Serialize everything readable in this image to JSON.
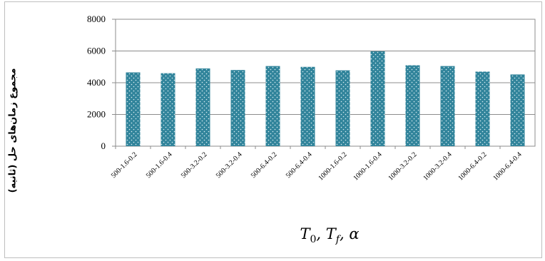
{
  "chart_data": {
    "type": "bar",
    "categories": [
      "500-1.6-0.2",
      "500-1.6-0.4",
      "500-3.2-0.2",
      "500-3.2-0.4",
      "500-6.4-0.2",
      "500-6.4-0.4",
      "1000-1.6-0.2",
      "1000-1.6-0.4",
      "1000-3.2-0.2",
      "1000-3.2-0.4",
      "1000-6.4-0.2",
      "1000-6.4-0.4"
    ],
    "values": [
      4650,
      4600,
      4900,
      4800,
      5050,
      5000,
      4780,
      5980,
      5100,
      5050,
      4700,
      4520
    ],
    "ylabel": "مجموع زمان‌های حل (ثانیه)",
    "xlabel": "T0, Tf, α",
    "xlabel_parts": [
      "T",
      "0",
      ", T",
      "f",
      ", α"
    ],
    "yticks": [
      "0",
      "2000",
      "4000",
      "6000",
      "8000"
    ],
    "ylim": [
      0,
      8000
    ],
    "grid": true,
    "colors": {
      "bar": "#31849b",
      "dots": "#dbeef3",
      "grid": "#8c8c8c"
    }
  }
}
